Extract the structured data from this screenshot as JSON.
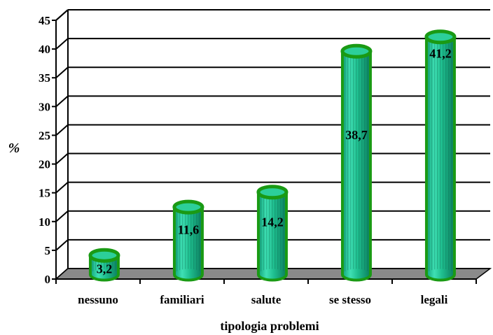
{
  "chart_data": {
    "type": "bar",
    "categories": [
      "nessuno",
      "familiari",
      "salute",
      "se stesso",
      "legali"
    ],
    "values": [
      3.2,
      11.6,
      14.2,
      38.7,
      41.2
    ],
    "value_labels": [
      "3,2",
      "11,6",
      "14,2",
      "38,7",
      "41,2"
    ],
    "xlabel": "tipologia problemi",
    "ylabel": "%",
    "ylim": [
      0,
      45
    ],
    "yticks": [
      "0",
      "5",
      "10",
      "15",
      "20",
      "25",
      "30",
      "35",
      "40",
      "45"
    ],
    "grid": true,
    "style": "3d-cylinder",
    "colors": {
      "bar_fill": "#1fbf8f",
      "bar_outline": "#1a9a14",
      "floor": "#8a8a8a",
      "grid": "#000000"
    }
  }
}
